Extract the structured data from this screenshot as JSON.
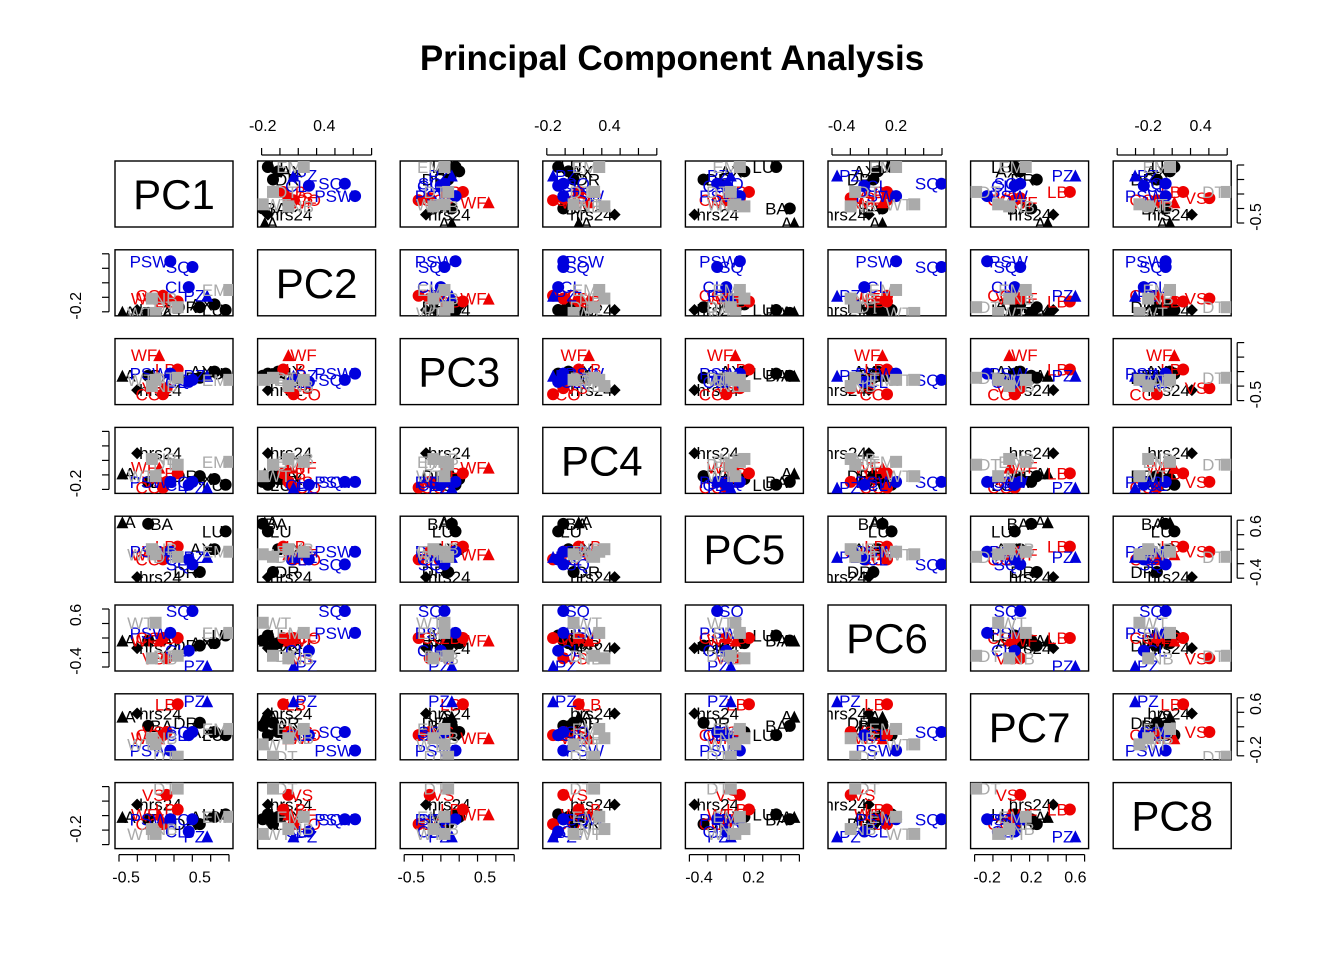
{
  "chart_data": {
    "type": "scatter",
    "title": "Principal Component Analysis",
    "variables": [
      "PC1",
      "PC2",
      "PC3",
      "PC4",
      "PC5",
      "PC6",
      "PC7",
      "PC8"
    ],
    "colors": {
      "black": "#000000",
      "red": "#ee0000",
      "blue": "#0000dd",
      "gray": "#aaaaaa"
    },
    "axes": {
      "PC1": {
        "ticks": [
          -0.5,
          0.5
        ],
        "range": [
          -0.65,
          0.95
        ]
      },
      "PC2": {
        "ticks": [
          -0.2,
          0.4
        ],
        "range": [
          -0.25,
          0.9
        ]
      },
      "PC3": {
        "ticks": [
          -0.5,
          0.5
        ],
        "range": [
          -0.65,
          0.95
        ]
      },
      "PC4": {
        "ticks": [
          -0.2,
          0.4
        ],
        "range": [
          -0.25,
          0.9
        ]
      },
      "PC5": {
        "ticks": [
          -0.4,
          0.2,
          0.6
        ],
        "tick_labels": [
          "-0.4",
          "0.2",
          "0.6"
        ],
        "range": [
          -0.55,
          0.75
        ]
      },
      "PC6": {
        "ticks": [
          -0.4,
          0.2,
          0.6
        ],
        "tick_labels": [
          "-0.4",
          "0.2",
          "0.6"
        ],
        "range": [
          -0.55,
          0.75
        ]
      },
      "PC7": {
        "ticks": [
          -0.2,
          0.2,
          0.6
        ],
        "tick_labels": [
          "-0.2",
          "0.2",
          "0.6"
        ],
        "range": [
          -0.35,
          0.72
        ]
      },
      "PC8": {
        "ticks": [
          -0.5,
          -0.2,
          0.2,
          0.4,
          0.6
        ],
        "range": [
          -0.6,
          0.75
        ]
      }
    },
    "axis_sides": {
      "top": [
        {
          "var": "PC2",
          "ticks": [
            -0.2,
            0.4
          ]
        },
        {
          "var": "PC4",
          "ticks": [
            -0.2,
            0.4
          ]
        },
        {
          "var": "PC6",
          "ticks": [
            -0.4,
            0.2
          ]
        },
        {
          "var": "PC8",
          "ticks": [
            -0.2,
            0.4
          ]
        }
      ],
      "bottom": [
        {
          "var": "PC1",
          "ticks": [
            -0.5,
            0.5
          ]
        },
        {
          "var": "PC3",
          "ticks": [
            -0.5,
            0.5
          ]
        },
        {
          "var": "PC5",
          "ticks": [
            -0.4,
            0.2
          ]
        },
        {
          "var": "PC7",
          "ticks": [
            -0.2,
            0.2,
            0.6
          ],
          "labels": [
            "-0.2",
            "0.2",
            "0.6"
          ],
          "extra_ticks": [
            0.0,
            0.4
          ]
        }
      ],
      "left": [
        {
          "var": "PC2",
          "ticks": [
            -0.2
          ]
        },
        {
          "var": "PC4",
          "ticks": [
            -0.2
          ]
        },
        {
          "var": "PC6",
          "ticks": [
            -0.4,
            0.6
          ]
        },
        {
          "var": "PC8",
          "ticks": [
            -0.2
          ]
        }
      ],
      "right": [
        {
          "var": "PC1",
          "ticks": [
            -0.5
          ]
        },
        {
          "var": "PC3",
          "ticks": [
            -0.5
          ]
        },
        {
          "var": "PC5",
          "ticks": [
            -0.4,
            0.6
          ]
        },
        {
          "var": "PC7",
          "ticks": [
            -0.2,
            0.6
          ]
        }
      ]
    },
    "points": [
      {
        "label": "hrs24",
        "color": "black",
        "shape": "diamond",
        "pc": [
          -0.35,
          -0.15,
          -0.3,
          0.45,
          -0.45,
          -0.1,
          0.4,
          0.3
        ]
      },
      {
        "label": "BA",
        "color": "black",
        "shape": "circle",
        "pc": [
          -0.2,
          -0.2,
          0.05,
          -0.05,
          0.6,
          0.05,
          0.2,
          0.0
        ]
      },
      {
        "label": "LU",
        "color": "black",
        "shape": "circle",
        "pc": [
          0.85,
          -0.15,
          0.1,
          -0.1,
          0.45,
          0.15,
          0.05,
          0.1
        ]
      },
      {
        "label": "DR",
        "color": "black",
        "shape": "circle",
        "pc": [
          0.5,
          -0.1,
          0.0,
          0.05,
          -0.35,
          -0.05,
          0.25,
          -0.1
        ]
      },
      {
        "label": "AX",
        "color": "black",
        "shape": "circle",
        "pc": [
          0.7,
          -0.05,
          0.15,
          0.0,
          0.1,
          0.0,
          0.1,
          0.05
        ]
      },
      {
        "label": "A",
        "color": "black",
        "shape": "triangle",
        "pc": [
          -0.55,
          -0.18,
          0.05,
          0.1,
          0.65,
          0.05,
          0.35,
          0.05
        ]
      },
      {
        "label": "VS",
        "color": "red",
        "shape": "circle",
        "pc": [
          0.05,
          0.05,
          -0.25,
          -0.05,
          0.05,
          -0.3,
          0.1,
          0.5
        ]
      },
      {
        "label": "LB",
        "color": "red",
        "shape": "circle",
        "pc": [
          0.2,
          0.0,
          0.2,
          0.1,
          0.15,
          0.1,
          0.55,
          0.2
        ]
      },
      {
        "label": "WF",
        "color": "red",
        "shape": "triangle",
        "pc": [
          -0.05,
          0.05,
          0.55,
          0.2,
          0.0,
          0.05,
          0.0,
          0.1
        ]
      },
      {
        "label": "CO",
        "color": "red",
        "shape": "circle",
        "pc": [
          0.0,
          0.1,
          -0.4,
          -0.15,
          -0.1,
          0.1,
          0.05,
          -0.1
        ]
      },
      {
        "label": "PZ",
        "color": "blue",
        "shape": "triangle",
        "pc": [
          0.6,
          0.1,
          0.05,
          -0.15,
          -0.05,
          -0.45,
          0.6,
          -0.35
        ]
      },
      {
        "label": "SQ",
        "color": "blue",
        "shape": "circle",
        "pc": [
          0.4,
          0.6,
          -0.05,
          -0.05,
          -0.2,
          0.7,
          0.1,
          0.0
        ]
      },
      {
        "label": "PSW",
        "color": "blue",
        "shape": "circle",
        "pc": [
          0.1,
          0.7,
          0.1,
          -0.05,
          0.05,
          0.2,
          -0.2,
          0.0
        ]
      },
      {
        "label": "CL",
        "color": "blue",
        "shape": "circle",
        "pc": [
          0.35,
          0.25,
          -0.1,
          -0.1,
          -0.1,
          -0.15,
          0.05,
          -0.25
        ]
      },
      {
        "label": "EM",
        "color": "gray",
        "shape": "square",
        "pc": [
          0.9,
          0.2,
          -0.05,
          0.3,
          0.05,
          0.2,
          0.15,
          0.05
        ]
      },
      {
        "label": "WT",
        "color": "gray",
        "shape": "square",
        "pc": [
          -0.1,
          -0.2,
          -0.05,
          0.05,
          0.0,
          0.4,
          -0.1,
          -0.3
        ]
      },
      {
        "label": "DT",
        "color": "gray",
        "shape": "square",
        "pc": [
          0.2,
          -0.1,
          0.0,
          0.25,
          -0.05,
          -0.25,
          -0.3,
          0.7
        ]
      },
      {
        "label": "NB",
        "color": "gray",
        "shape": "square",
        "pc": [
          -0.15,
          0.05,
          -0.2,
          0.35,
          0.1,
          -0.3,
          0.0,
          -0.2
        ]
      }
    ]
  }
}
